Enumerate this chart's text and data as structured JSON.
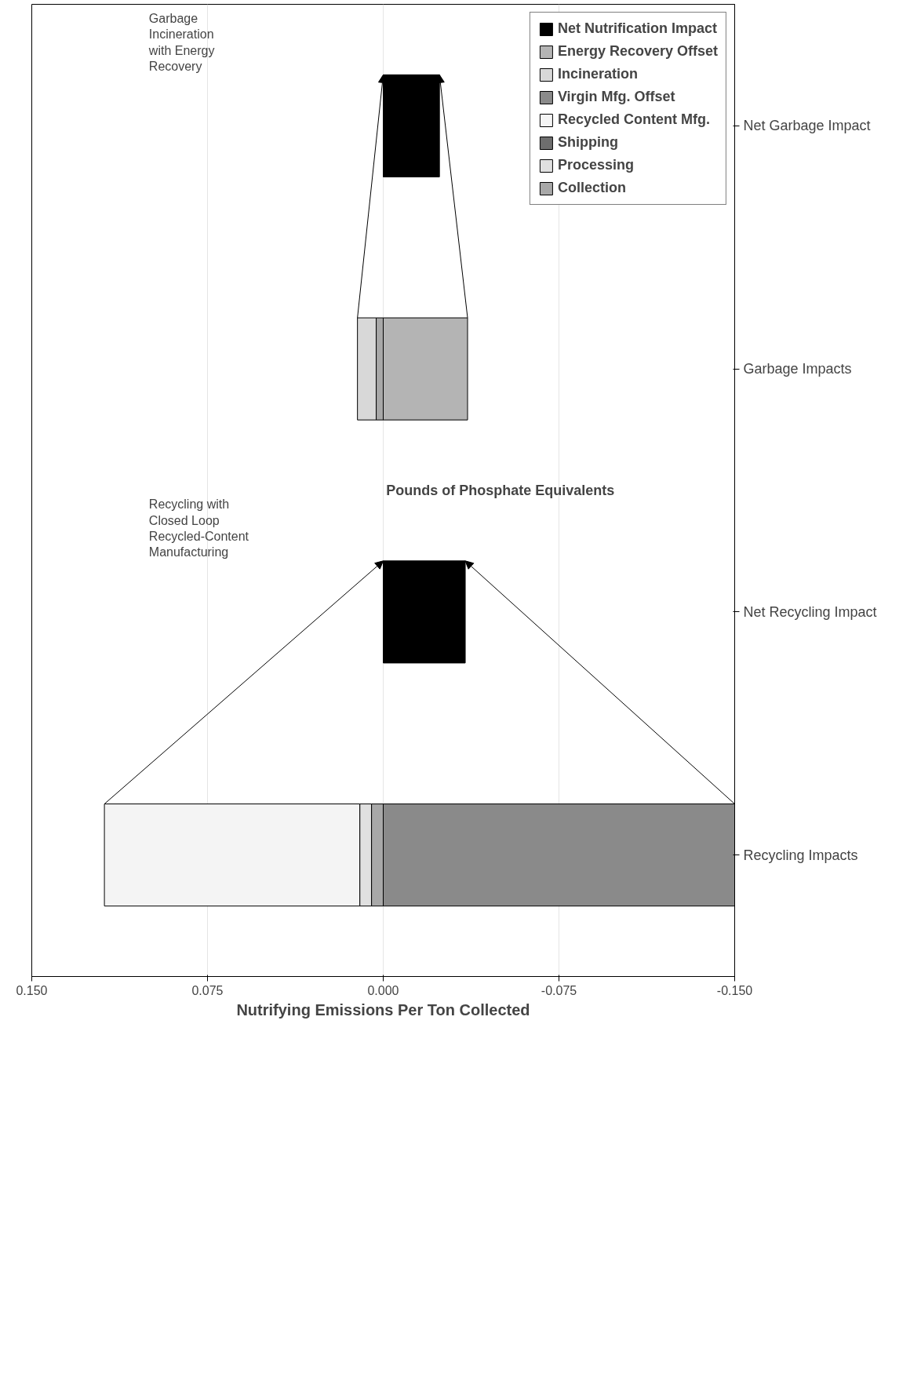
{
  "chart_data": {
    "type": "bar",
    "orientation": "horizontal",
    "stacked": true,
    "xlabel": "Nutrifying Emissions Per Ton Collected",
    "categories": [
      "Net Garbage Impact",
      "Garbage Impacts",
      "Net Recycling Impact",
      "Recycling Impacts"
    ],
    "series": [
      {
        "name": "Collection",
        "color": "#a8a8a8",
        "values": [
          null,
          0.003,
          null,
          0.005
        ]
      },
      {
        "name": "Processing",
        "color": "#e0e0e0",
        "values": [
          null,
          null,
          null,
          0.005
        ]
      },
      {
        "name": "Shipping",
        "color": "#6e6e6e",
        "values": [
          null,
          null,
          null,
          null
        ]
      },
      {
        "name": "Recycled Content Mfg.",
        "color": "#f4f4f4",
        "values": [
          null,
          null,
          null,
          0.109
        ]
      },
      {
        "name": "Virgin Mfg. Offset",
        "color": "#8a8a8a",
        "values": [
          null,
          null,
          null,
          -0.15
        ]
      },
      {
        "name": "Incineration",
        "color": "#d8d8d8",
        "values": [
          null,
          0.008,
          null,
          null
        ]
      },
      {
        "name": "Energy Recovery Offset",
        "color": "#b4b4b4",
        "values": [
          null,
          -0.036,
          null,
          null
        ]
      },
      {
        "name": "Net Nutrification Impact",
        "color": "#000000",
        "values": [
          -0.024,
          null,
          -0.035,
          null
        ]
      }
    ],
    "xlim": [
      0.15,
      -0.15
    ],
    "xticks": [
      {
        "value": 0.15,
        "label": "0.150"
      },
      {
        "value": 0.075,
        "label": "0.075"
      },
      {
        "value": 0,
        "label": "0.000"
      },
      {
        "value": -0.075,
        "label": "-0.075"
      },
      {
        "value": -0.15,
        "label": "-0.150"
      }
    ],
    "grid": "x",
    "legend": "top right",
    "annotations": [
      "Recycling with Closed Loop Recycled-Content Manufacturing",
      "Garbage Incineration with Energy Recovery",
      "Pounds of Phosphate Equivalents"
    ]
  }
}
